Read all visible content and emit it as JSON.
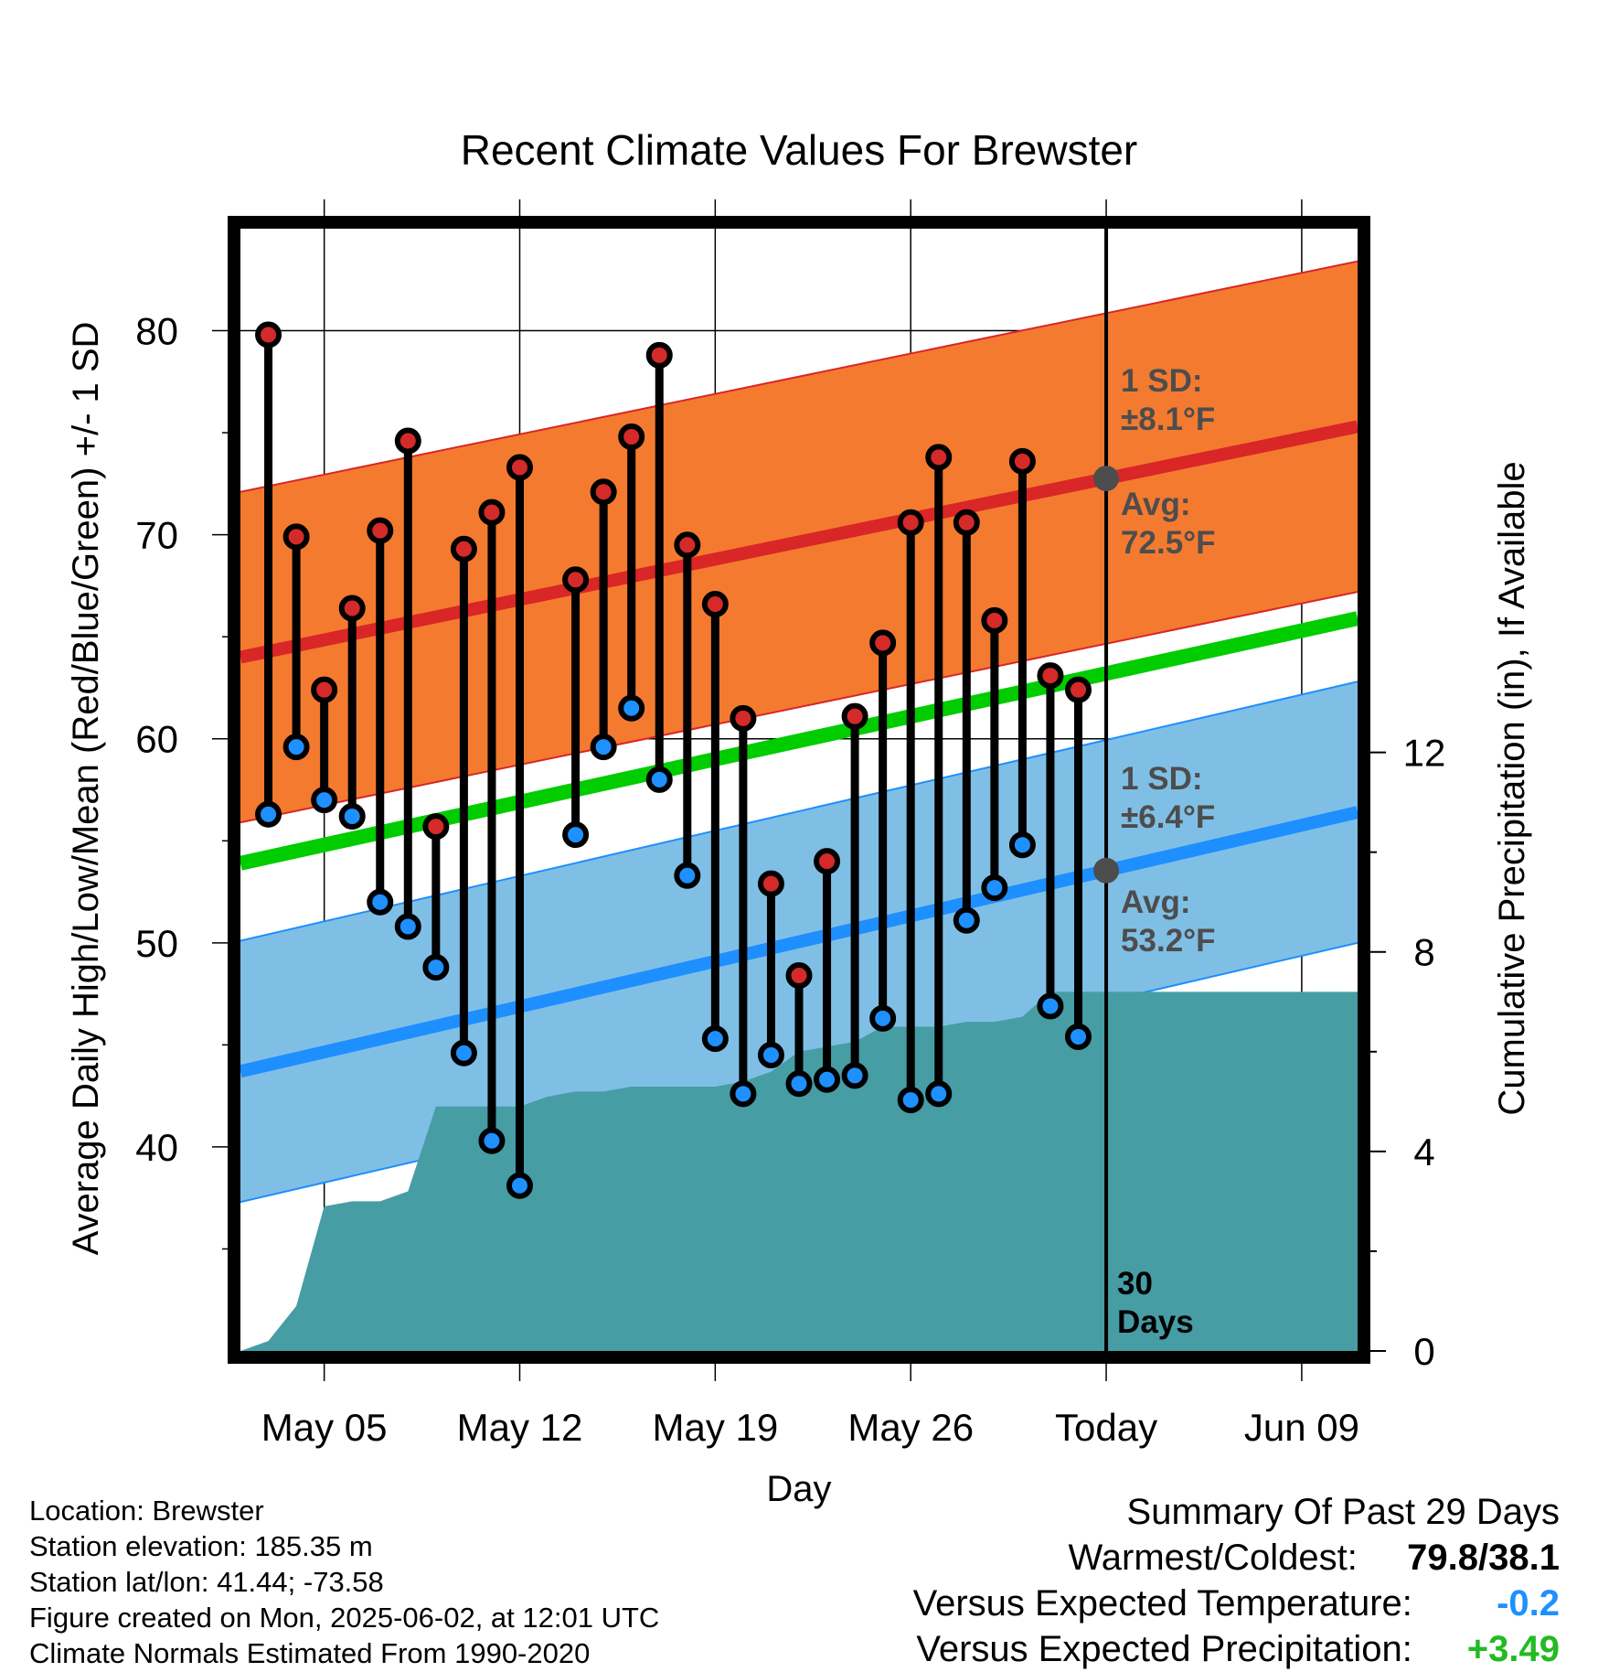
{
  "chart_data": {
    "type": "line",
    "title": "Recent Climate Values For Brewster",
    "xlabel": "Day",
    "ylabel": "Average Daily High/Low/Mean (Red/Blue/Green) +/- 1 SD",
    "y2label": "Cumulative Precipitation (in), If Available",
    "ylim": [
      30,
      85
    ],
    "y2lim": [
      0,
      22.5
    ],
    "x_tick_labels": [
      "May 05",
      "May 12",
      "May 19",
      "May 26",
      "Today",
      "Jun 09"
    ],
    "x_tick_dates": [
      "2025-05-05",
      "2025-05-12",
      "2025-05-19",
      "2025-05-26",
      "2025-06-02",
      "2025-06-09"
    ],
    "y_ticks": [
      40,
      50,
      60,
      70,
      80
    ],
    "y2_ticks": [
      0,
      4,
      8,
      12
    ],
    "xlim": [
      "2025-05-02",
      "2025-06-11"
    ],
    "grid": true,
    "daily_obs": {
      "dates": [
        "2025-05-03",
        "2025-05-04",
        "2025-05-05",
        "2025-05-06",
        "2025-05-07",
        "2025-05-08",
        "2025-05-09",
        "2025-05-10",
        "2025-05-11",
        "2025-05-12",
        "2025-05-14",
        "2025-05-15",
        "2025-05-16",
        "2025-05-17",
        "2025-05-18",
        "2025-05-19",
        "2025-05-20",
        "2025-05-21",
        "2025-05-22",
        "2025-05-23",
        "2025-05-24",
        "2025-05-25",
        "2025-05-26",
        "2025-05-27",
        "2025-05-28",
        "2025-05-29",
        "2025-05-30",
        "2025-05-31",
        "2025-06-01"
      ],
      "high": [
        79.8,
        69.9,
        62.4,
        66.4,
        70.2,
        74.6,
        55.7,
        69.3,
        71.1,
        73.3,
        67.8,
        72.1,
        74.8,
        78.8,
        69.5,
        66.6,
        61.0,
        52.9,
        48.4,
        54.0,
        61.1,
        64.7,
        70.6,
        73.8,
        70.6,
        65.8,
        73.6,
        63.1,
        62.4
      ],
      "low": [
        56.3,
        59.6,
        57.0,
        56.2,
        52.0,
        50.8,
        48.8,
        44.6,
        40.3,
        38.1,
        55.3,
        59.6,
        61.5,
        58.0,
        53.3,
        45.3,
        42.6,
        44.5,
        43.1,
        43.3,
        43.5,
        46.3,
        42.3,
        42.6,
        51.1,
        52.7,
        54.8,
        46.9,
        45.4
      ]
    },
    "normal_high": {
      "start": 64.0,
      "end": 75.3,
      "sd": 8.1
    },
    "normal_low": {
      "start": 43.7,
      "end": 56.4,
      "sd": 6.4
    },
    "normal_mean": {
      "start": 53.9,
      "end": 65.9
    },
    "precip_cumulative": {
      "dates": [
        "2025-05-02",
        "2025-05-03",
        "2025-05-04",
        "2025-05-05",
        "2025-05-06",
        "2025-05-07",
        "2025-05-08",
        "2025-05-09",
        "2025-05-12",
        "2025-05-13",
        "2025-05-14",
        "2025-05-15",
        "2025-05-16",
        "2025-05-17",
        "2025-05-18",
        "2025-05-19",
        "2025-05-20",
        "2025-05-21",
        "2025-05-22",
        "2025-05-23",
        "2025-05-24",
        "2025-05-25",
        "2025-05-26",
        "2025-05-27",
        "2025-05-28",
        "2025-05-29",
        "2025-05-30",
        "2025-05-31",
        "2025-06-02",
        "2025-06-11"
      ],
      "values": [
        0.0,
        0.2,
        0.9,
        2.9,
        3.0,
        3.0,
        3.2,
        4.9,
        4.9,
        5.1,
        5.2,
        5.2,
        5.3,
        5.3,
        5.3,
        5.3,
        5.4,
        5.6,
        6.0,
        6.1,
        6.2,
        6.5,
        6.5,
        6.5,
        6.6,
        6.6,
        6.7,
        7.2,
        7.2,
        7.2
      ]
    },
    "annotations": {
      "high_sd": [
        "1 SD:",
        "±8.1°F"
      ],
      "high_avg": [
        "Avg:",
        "72.5°F"
      ],
      "low_sd": [
        "1 SD:",
        "±6.4°F"
      ],
      "low_avg": [
        "Avg:",
        "53.2°F"
      ],
      "window": [
        "30",
        "Days"
      ]
    },
    "colors": {
      "high_band": "#f47a30",
      "high_line": "#d92626",
      "low_band": "#80bfe5",
      "low_line": "#1e8fff",
      "mean_line": "#00cc00",
      "precip_fill": "#469da4",
      "high_dot": "#d42a2a",
      "low_dot": "#1e90ff",
      "avg_marker": "#4d4d4d"
    }
  },
  "footer": {
    "location": "Location: Brewster",
    "elevation": "Station elevation: 185.35 m",
    "latlon": "Station lat/lon: 41.44; -73.58",
    "created": "Figure created on Mon, 2025-06-02, at 12:01 UTC",
    "normals": "Climate Normals Estimated From 1990-2020"
  },
  "summary": {
    "title": "Summary Of Past 29 Days",
    "warmest_label": "Warmest/Coldest:",
    "warmest_value": "79.8/38.1",
    "temp_label": "Versus Expected Temperature:",
    "temp_value": "-0.2",
    "temp_color": "#1e90ff",
    "precip_label": "Versus Expected Precipitation:",
    "precip_value": "+3.49",
    "precip_color": "#22bb22"
  }
}
